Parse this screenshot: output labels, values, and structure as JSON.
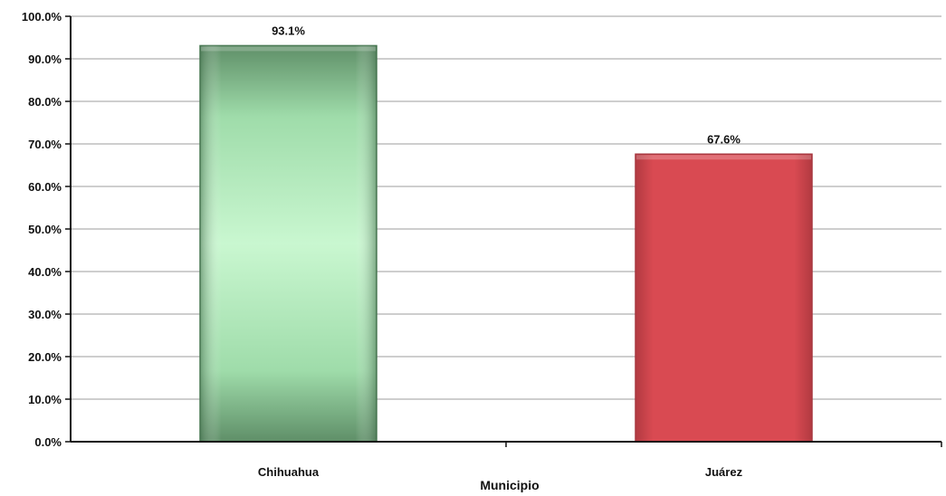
{
  "chart_data": {
    "type": "bar",
    "categories": [
      "Chihuahua",
      "Juárez"
    ],
    "values": [
      93.1,
      67.6
    ],
    "value_labels": [
      "93.1%",
      "67.6%"
    ],
    "bar_colors": [
      "#6aa77a",
      "#d94a52"
    ],
    "xlabel": "Municipio",
    "ylabel": "",
    "ylim": [
      0,
      100
    ],
    "yticks": [
      0,
      10,
      20,
      30,
      40,
      50,
      60,
      70,
      80,
      90,
      100
    ],
    "ytick_labels": [
      "0.0%",
      "10.0%",
      "20.0%",
      "30.0%",
      "40.0%",
      "50.0%",
      "60.0%",
      "70.0%",
      "80.0%",
      "90.0%",
      "100.0%"
    ],
    "grid": true,
    "legend": "none"
  }
}
